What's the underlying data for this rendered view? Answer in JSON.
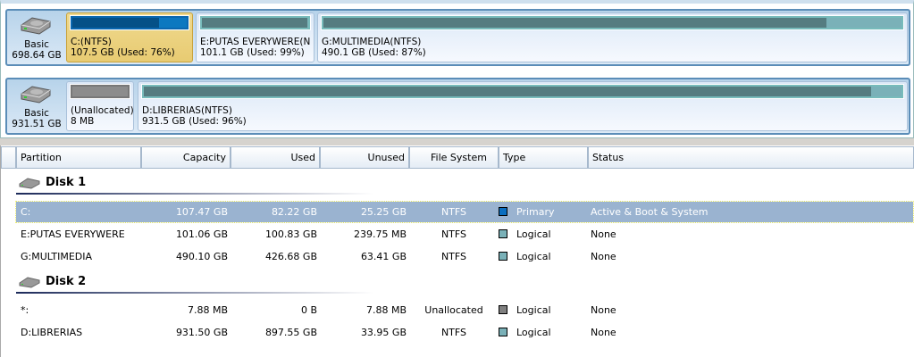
{
  "disks": [
    {
      "type": "Basic",
      "size": "698.64 GB",
      "partitions": [
        {
          "name": "C:(NTFS)",
          "info": "107.5 GB (Used: 76%)",
          "used": 76,
          "kind": "primary",
          "selected": true
        },
        {
          "name": "E:PUTAS EVERYWERE(N",
          "info": "101.1 GB (Used: 99%)",
          "used": 99,
          "kind": "logical"
        },
        {
          "name": "G:MULTIMEDIA(NTFS)",
          "info": "490.1 GB (Used: 87%)",
          "used": 87,
          "kind": "logical"
        }
      ]
    },
    {
      "type": "Basic",
      "size": "931.51 GB",
      "partitions": [
        {
          "name": "(Unallocated)",
          "info": "8 MB",
          "used": 100,
          "kind": "unallocated"
        },
        {
          "name": "D:LIBRERIAS(NTFS)",
          "info": "931.5 GB (Used: 96%)",
          "used": 96,
          "kind": "logical"
        }
      ]
    }
  ],
  "columns": [
    "Partition",
    "Capacity",
    "Used",
    "Unused",
    "File System",
    "Type",
    "Status"
  ],
  "groups": [
    {
      "label": "Disk 1",
      "rows": [
        [
          "C:",
          "107.47 GB",
          "82.22 GB",
          "25.25 GB",
          "NTFS",
          "Primary",
          "Active & Boot & System"
        ],
        [
          "E:PUTAS EVERYWERE",
          "101.06 GB",
          "100.83 GB",
          "239.75 MB",
          "NTFS",
          "Logical",
          "None"
        ],
        [
          "G:MULTIMEDIA",
          "490.10 GB",
          "426.68 GB",
          "63.41 GB",
          "NTFS",
          "Logical",
          "None"
        ]
      ]
    },
    {
      "label": "Disk 2",
      "rows": [
        [
          "*:",
          "7.88 MB",
          "0 B",
          "7.88 MB",
          "Unallocated",
          "Logical",
          "None"
        ],
        [
          "D:LIBRERIAS",
          "931.50 GB",
          "897.55 GB",
          "33.95 GB",
          "NTFS",
          "Logical",
          "None"
        ]
      ]
    }
  ],
  "type_colors": {
    "primary": "#0c6fc0",
    "logical": "#7ab1b8",
    "unallocated": "#808080"
  }
}
